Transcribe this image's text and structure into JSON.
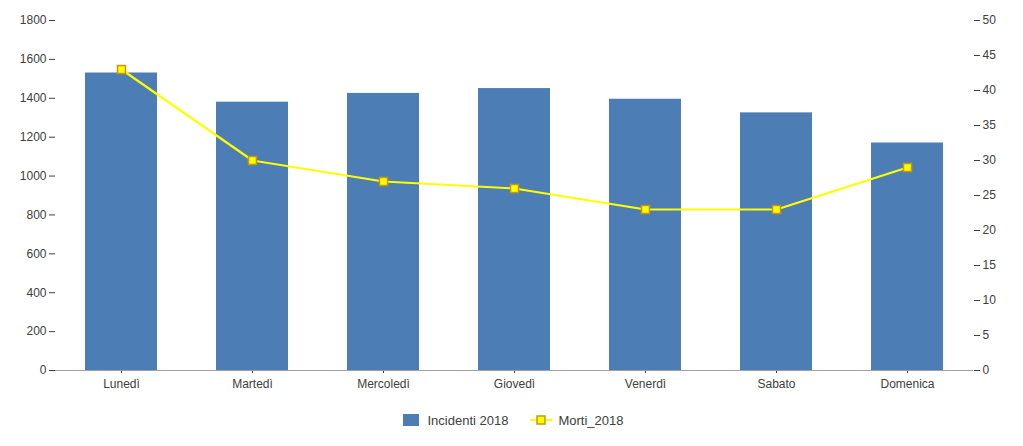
{
  "chart_data": {
    "type": "bar",
    "categories": [
      "Lunedì",
      "Martedì",
      "Mercoledì",
      "Giovedì",
      "Venerdì",
      "Sabato",
      "Domenica"
    ],
    "series": [
      {
        "name": "Incidenti 2018",
        "type": "bar",
        "color": "#4d7db5",
        "values": [
          1530,
          1380,
          1425,
          1450,
          1395,
          1325,
          1170
        ]
      },
      {
        "name": "Morti_2018",
        "type": "line",
        "axis": "y2",
        "color": "#ffff00",
        "marker": "square",
        "values": [
          43,
          30,
          27,
          26,
          23,
          23,
          29
        ]
      }
    ],
    "ylim": [
      0,
      1800
    ],
    "yticks": [
      0,
      200,
      400,
      600,
      800,
      1000,
      1200,
      1400,
      1600,
      1800
    ],
    "y2lim": [
      0,
      50
    ],
    "y2ticks": [
      0,
      5,
      10,
      15,
      20,
      25,
      30,
      35,
      40,
      45,
      50
    ],
    "grid": false,
    "legend": "bottom"
  }
}
